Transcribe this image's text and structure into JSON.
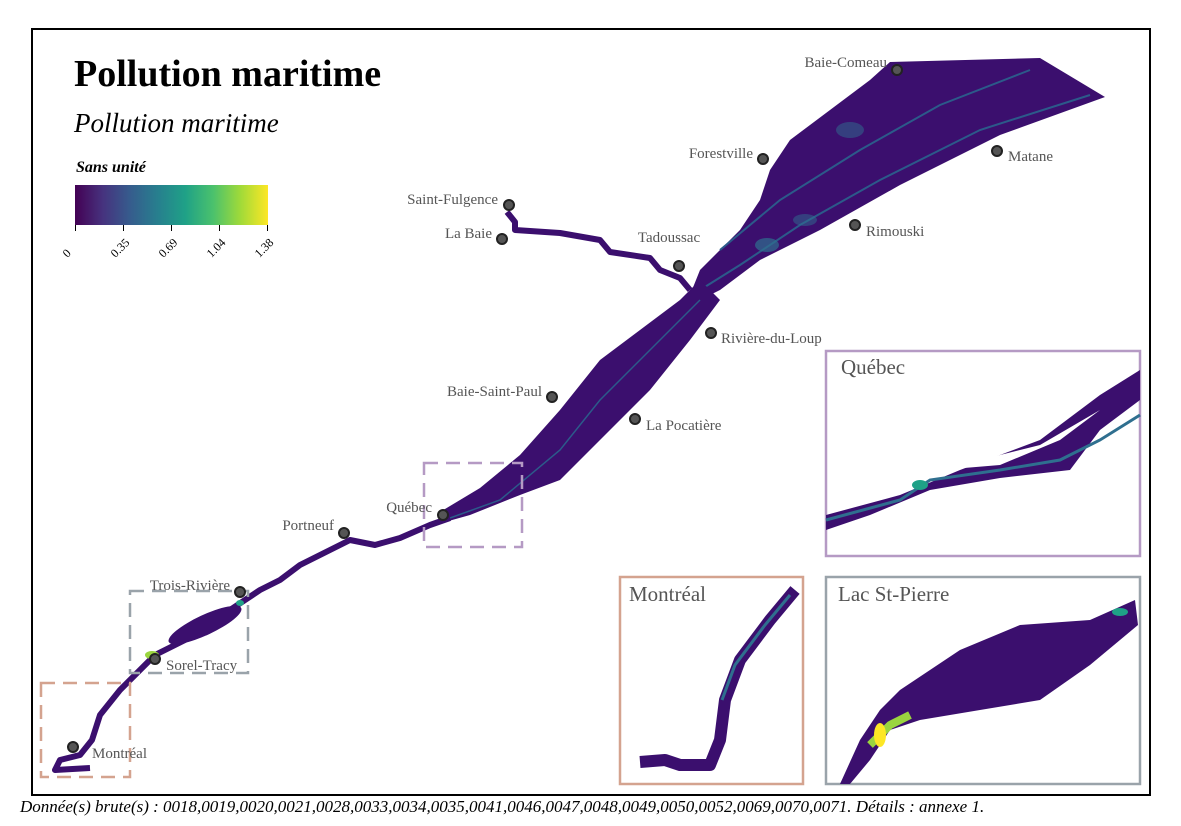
{
  "map": {
    "title": "Pollution maritime",
    "subtitle": "Pollution maritime"
  },
  "legend": {
    "title": "Sans unité",
    "ticks": [
      "0",
      "0.35",
      "0.69",
      "1.04",
      "1.38"
    ],
    "colors": [
      "#440154",
      "#46327e",
      "#365c8d",
      "#277f8e",
      "#1fa187",
      "#4ac16d",
      "#a0da39",
      "#fde725"
    ]
  },
  "cities": [
    {
      "name": "Baie-Comeau"
    },
    {
      "name": "Forestville"
    },
    {
      "name": "Matane"
    },
    {
      "name": "Saint-Fulgence"
    },
    {
      "name": "La Baie"
    },
    {
      "name": "Tadoussac"
    },
    {
      "name": "Rimouski"
    },
    {
      "name": "Rivière-du-Loup"
    },
    {
      "name": "Baie-Saint-Paul"
    },
    {
      "name": "La Pocatière"
    },
    {
      "name": "Québec"
    },
    {
      "name": "Portneuf"
    },
    {
      "name": "Trois-Rivière"
    },
    {
      "name": "Sorel-Tracy"
    },
    {
      "name": "Montréal"
    }
  ],
  "insets": {
    "quebec": "Québec",
    "montreal": "Montréal",
    "lac_st_pierre": "Lac St-Pierre"
  },
  "colors": {
    "water_low": "#3b0f6e",
    "water_mid": "#31688e",
    "water_high": "#fde725",
    "inset_quebec": "#b59ac4",
    "inset_montreal": "#d4a38f",
    "inset_lac": "#9aa3aa"
  },
  "footer": "Donnée(s) brute(s) : 0018,0019,0020,0021,0028,0033,0034,0035,0041,0046,0047,0048,0049,0050,0052,0069,0070,0071. Détails : annexe 1."
}
